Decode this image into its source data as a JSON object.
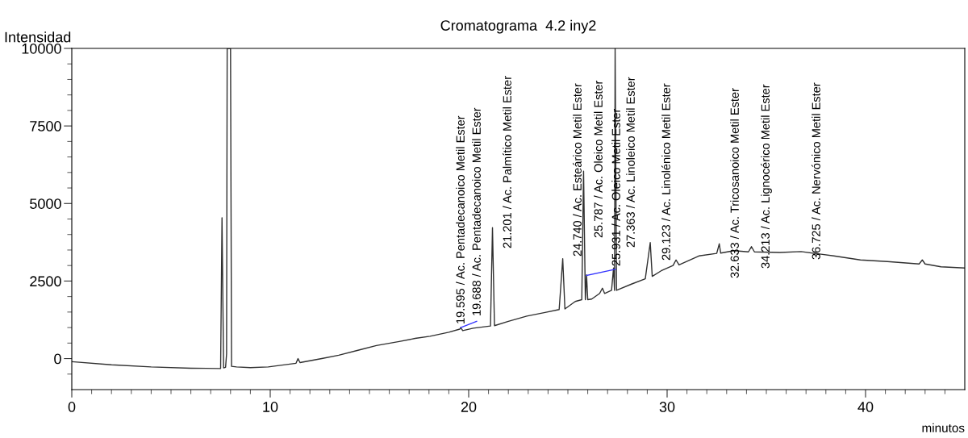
{
  "chart_data": {
    "type": "line",
    "title": "Cromatograma  4.2 iny2",
    "xlabel": "minutos",
    "ylabel": "Intensidad",
    "xlim": [
      0,
      45
    ],
    "ylim": [
      -1000,
      10000
    ],
    "xticks": [
      0,
      {
        "value": 1,
        "label": null
      },
      {
        "value": 2,
        "label": null
      },
      {
        "value": 3,
        "label": null
      },
      {
        "value": 4,
        "label": null
      },
      {
        "value": 5,
        "label": null
      },
      {
        "value": 6,
        "label": null
      },
      {
        "value": 7,
        "label": null
      },
      {
        "value": 8,
        "label": null
      },
      {
        "value": 9,
        "label": null
      },
      10,
      {
        "value": 11,
        "label": null
      },
      {
        "value": 12,
        "label": null
      },
      {
        "value": 13,
        "label": null
      },
      {
        "value": 14,
        "label": null
      },
      {
        "value": 15,
        "label": null
      },
      {
        "value": 16,
        "label": null
      },
      {
        "value": 17,
        "label": null
      },
      {
        "value": 18,
        "label": null
      },
      {
        "value": 19,
        "label": null
      },
      20,
      {
        "value": 21,
        "label": null
      },
      {
        "value": 22,
        "label": null
      },
      {
        "value": 23,
        "label": null
      },
      {
        "value": 24,
        "label": null
      },
      {
        "value": 25,
        "label": null
      },
      {
        "value": 26,
        "label": null
      },
      {
        "value": 27,
        "label": null
      },
      {
        "value": 28,
        "label": null
      },
      {
        "value": 29,
        "label": null
      },
      30,
      {
        "value": 31,
        "label": null
      },
      {
        "value": 32,
        "label": null
      },
      {
        "value": 33,
        "label": null
      },
      {
        "value": 34,
        "label": null
      },
      {
        "value": 35,
        "label": null
      },
      {
        "value": 36,
        "label": null
      },
      {
        "value": 37,
        "label": null
      },
      {
        "value": 38,
        "label": null
      },
      {
        "value": 39,
        "label": null
      },
      40,
      {
        "value": 41,
        "label": null
      },
      {
        "value": 42,
        "label": null
      },
      {
        "value": 43,
        "label": null
      },
      {
        "value": 44,
        "label": null
      }
    ],
    "yticks": [
      {
        "value": -500,
        "label": null
      },
      0,
      {
        "value": 500,
        "label": null
      },
      {
        "value": 1000,
        "label": null
      },
      {
        "value": 1500,
        "label": null
      },
      {
        "value": 2000,
        "label": null
      },
      2500,
      {
        "value": 3000,
        "label": null
      },
      {
        "value": 3500,
        "label": null
      },
      {
        "value": 4000,
        "label": null
      },
      {
        "value": 4500,
        "label": null
      },
      5000,
      {
        "value": 5500,
        "label": null
      },
      {
        "value": 6000,
        "label": null
      },
      {
        "value": 6500,
        "label": null
      },
      {
        "value": 7000,
        "label": null
      },
      7500,
      {
        "value": 8000,
        "label": null
      },
      {
        "value": 8500,
        "label": null
      },
      {
        "value": 9000,
        "label": null
      },
      {
        "value": 9500,
        "label": null
      },
      10000
    ],
    "grid": false,
    "marker": "none",
    "line_style": "solid",
    "series": [
      {
        "color": "#303030",
        "x": [
          0,
          2,
          4,
          6,
          7.5,
          7.57,
          7.65,
          7.75,
          7.8,
          7.83,
          7.9,
          8.0,
          8.05,
          8.3,
          9,
          9.9,
          11.3,
          11.4,
          11.5,
          12.6,
          13.45,
          14.5,
          15.35,
          16.5,
          17.3,
          18.05,
          19.0,
          19.55,
          19.6,
          19.7,
          20.23,
          21.1,
          21.2,
          21.3,
          22.0,
          22.93,
          23.8,
          24.56,
          24.74,
          24.85,
          25.37,
          25.7,
          25.79,
          25.88,
          25.94,
          26.0,
          26.2,
          26.6,
          26.74,
          26.85,
          27.2,
          27.3,
          27.35,
          27.38,
          27.45,
          27.55,
          28.2,
          28.9,
          29.15,
          29.25,
          29.7,
          30.3,
          30.45,
          30.6,
          31.6,
          32.5,
          32.63,
          32.7,
          33.37,
          34.1,
          34.25,
          34.4,
          35.68,
          36.75,
          38.4,
          39.74,
          41.1,
          42.7,
          42.86,
          43.0,
          43.8,
          45
        ],
        "values": [
          -100,
          -200,
          -270,
          -310,
          -320,
          4540,
          -300,
          -280,
          150,
          10000,
          10000,
          10000,
          -250,
          -270,
          -290,
          -270,
          -150,
          0,
          -130,
          0,
          110,
          280,
          420,
          550,
          650,
          720,
          850,
          950,
          1000,
          900,
          980,
          1050,
          4220,
          1060,
          1200,
          1370,
          1480,
          1580,
          3220,
          1600,
          1840,
          1900,
          6040,
          1900,
          2700,
          1900,
          1920,
          2100,
          2270,
          2100,
          2200,
          2920,
          2200,
          10000,
          2200,
          2230,
          2400,
          2570,
          3740,
          2650,
          2830,
          3000,
          3180,
          3020,
          3310,
          3390,
          3700,
          3400,
          3480,
          3440,
          3610,
          3440,
          3420,
          3450,
          3310,
          3180,
          3130,
          3050,
          3180,
          3050,
          2960,
          2920
        ]
      },
      {
        "color": "#3333ff",
        "x": [
          19.6,
          20.4
        ],
        "values": [
          1000,
          1200
        ]
      },
      {
        "color": "#3333ff",
        "x": [
          25.95,
          27.4
        ],
        "values": [
          2680,
          2880
        ]
      }
    ],
    "annotations": [
      "19.595 / Ac. Pentadecanoico Metil Ester",
      "19.688 / Ac. Pentadecanoico Metil Ester",
      "21.201 / Ac. Palmítico Metil Ester",
      "24.740 / Ac. Esteárico Metil Ester",
      "25.787 / Ac. Oleico Metil Ester",
      "25.931 / Ac. Oleico Metil Ester",
      "27.363 / Ac. Linoleico Metil Ester",
      "29.123 / Ac. Linolénico Metil Ester",
      "32.633 / Ac. Tricosanoico Metil Ester",
      "34.213 / Ac. Lignocérico Metil Ester",
      "36.725 / Ac. Nervónico Metil Ester"
    ]
  }
}
